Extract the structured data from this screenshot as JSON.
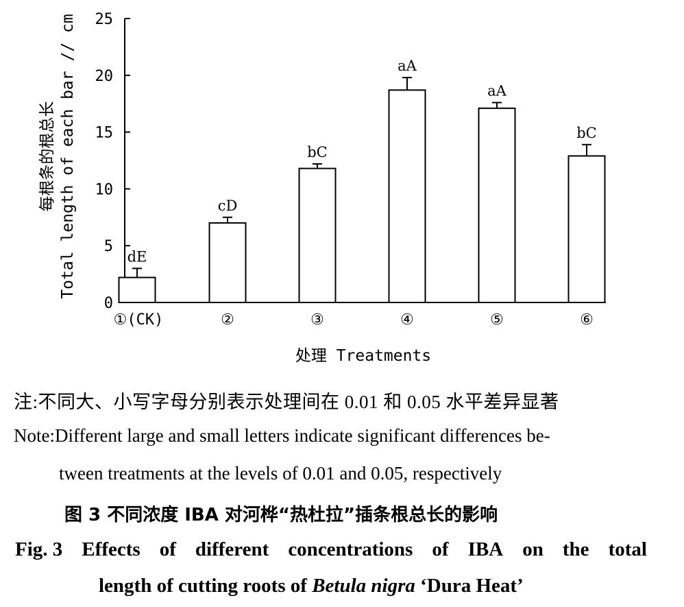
{
  "chart_data": {
    "type": "bar",
    "categories": [
      "①(CK)",
      "②",
      "③",
      "④",
      "⑤",
      "⑥"
    ],
    "values": [
      2.2,
      7.0,
      11.8,
      18.7,
      17.1,
      12.9
    ],
    "errors": [
      0.8,
      0.5,
      0.4,
      1.1,
      0.5,
      1.0
    ],
    "significance": [
      "dE",
      "cD",
      "bC",
      "aA",
      "aA",
      "bC"
    ],
    "ylabel_cn": "每根条的根总长",
    "ylabel_en": "Total length of each bar // cm",
    "xlabel": "处理 Treatments",
    "ylim": [
      0,
      25
    ],
    "yticks": [
      0,
      5,
      10,
      15,
      20,
      25
    ],
    "grid": false
  },
  "note": {
    "cn": "注:不同大、小写字母分别表示处理间在 0.01 和 0.05 水平差异显著",
    "en_prefix": "Note:",
    "en_line1": "Different large and small letters indicate significant differences be-",
    "en_line2": "tween treatments at the levels of 0.01 and 0.05, respectively"
  },
  "caption": {
    "cn": "图 3   不同浓度 IBA 对河桦“热杜拉”插条根总长的影响",
    "en_line1_words": [
      "Fig. 3",
      "Effects",
      "of",
      "different",
      "concentrations",
      "of",
      "IBA",
      "on",
      "the",
      "total"
    ],
    "en_line2_pre": "length of cutting roots of ",
    "en_line2_italic": "Betula nigra",
    "en_line2_post": " ‘Dura Heat’"
  }
}
